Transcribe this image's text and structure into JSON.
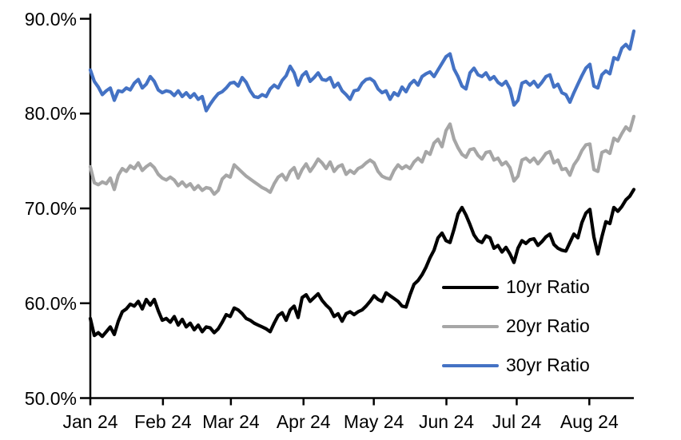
{
  "chart_data": {
    "type": "line",
    "title": "",
    "background": "#FFFFFF",
    "axis_color": "#000000",
    "grid": "off",
    "y_axis": {
      "min": 50,
      "max": 90,
      "tick_values": [
        90,
        80,
        70,
        60,
        50
      ],
      "tick_labels": [
        "90.0%",
        "80.0%",
        "70.0%",
        "60.0%",
        "50.0%"
      ],
      "format": "percent_one_decimal"
    },
    "x_axis": {
      "tick_labels": [
        "Jan 24",
        "Feb 24",
        "Mar 24",
        "Apr 24",
        "May 24",
        "Jun 24",
        "Jul 24",
        "Aug 24"
      ],
      "tick_day_offsets": [
        0,
        31,
        60,
        91,
        121,
        152,
        182,
        213
      ],
      "total_days": 232,
      "range_note": "daily data Jan 1 2024 through ~Aug 20 2024"
    },
    "legend": {
      "position": "inside-lower-right",
      "entries": [
        "10yr Ratio",
        "20yr Ratio",
        "30yr Ratio"
      ]
    },
    "series": [
      {
        "name": "10yr Ratio",
        "color": "#000000",
        "values": [
          58.4,
          56.6,
          56.9,
          56.5,
          57.0,
          57.5,
          56.7,
          58.1,
          59.1,
          59.4,
          59.9,
          59.7,
          60.2,
          59.4,
          60.4,
          59.8,
          60.4,
          59.2,
          58.2,
          58.4,
          58.0,
          58.6,
          57.7,
          58.3,
          57.5,
          57.9,
          57.2,
          57.7,
          57.0,
          57.5,
          57.4,
          56.9,
          57.3,
          58.0,
          58.8,
          58.6,
          59.5,
          59.3,
          58.9,
          58.4,
          58.2,
          57.9,
          57.7,
          57.5,
          57.3,
          57.0,
          57.9,
          58.7,
          59.0,
          58.2,
          59.3,
          59.7,
          58.5,
          60.6,
          60.9,
          60.2,
          60.6,
          61.0,
          60.3,
          59.8,
          59.4,
          58.6,
          58.9,
          58.1,
          58.9,
          59.1,
          58.8,
          59.1,
          59.3,
          59.7,
          60.2,
          60.8,
          60.4,
          60.2,
          61.1,
          60.8,
          60.5,
          60.2,
          59.7,
          59.6,
          60.9,
          62.0,
          62.4,
          63.0,
          63.8,
          64.8,
          65.6,
          66.9,
          67.4,
          66.6,
          66.4,
          67.8,
          69.4,
          70.1,
          69.3,
          68.3,
          67.2,
          66.6,
          66.4,
          67.1,
          66.9,
          65.8,
          66.1,
          65.4,
          65.9,
          65.2,
          64.3,
          65.8,
          66.6,
          66.3,
          66.7,
          66.8,
          66.1,
          66.5,
          67.0,
          67.3,
          66.2,
          65.8,
          65.6,
          65.5,
          66.4,
          67.3,
          66.9,
          68.5,
          69.5,
          69.9,
          67.0,
          65.2,
          67.0,
          68.6,
          68.4,
          70.1,
          69.7,
          70.2,
          70.9,
          71.3,
          72.0
        ]
      },
      {
        "name": "20yr Ratio",
        "color": "#A6A6A6",
        "values": [
          74.4,
          72.7,
          72.5,
          72.8,
          72.6,
          73.2,
          72.0,
          73.5,
          74.2,
          73.9,
          74.5,
          74.2,
          74.8,
          74.0,
          74.4,
          74.7,
          74.3,
          73.6,
          73.2,
          73.0,
          73.3,
          73.0,
          72.4,
          72.8,
          72.3,
          72.6,
          72.0,
          72.4,
          71.9,
          72.2,
          72.1,
          71.5,
          71.9,
          73.1,
          73.5,
          73.3,
          74.6,
          74.2,
          73.8,
          73.4,
          73.1,
          72.8,
          72.5,
          72.2,
          72.0,
          71.7,
          72.6,
          73.3,
          73.6,
          73.0,
          73.9,
          74.3,
          73.2,
          74.1,
          74.7,
          73.9,
          74.5,
          75.2,
          74.8,
          74.2,
          74.9,
          73.9,
          74.4,
          74.6,
          73.6,
          74.0,
          73.7,
          74.2,
          74.4,
          74.8,
          75.1,
          74.8,
          73.9,
          73.4,
          73.2,
          73.1,
          74.0,
          74.6,
          74.2,
          74.5,
          74.2,
          74.9,
          75.3,
          74.9,
          76.0,
          75.7,
          76.9,
          77.3,
          76.5,
          78.2,
          78.9,
          77.3,
          76.4,
          75.7,
          75.4,
          76.2,
          76.3,
          75.6,
          75.2,
          75.9,
          76.0,
          75.1,
          75.3,
          74.6,
          74.9,
          74.3,
          72.9,
          73.4,
          75.1,
          75.3,
          74.9,
          75.3,
          74.7,
          75.2,
          75.8,
          76.0,
          74.8,
          75.1,
          74.1,
          74.2,
          73.5,
          74.6,
          75.2,
          76.1,
          76.7,
          76.8,
          74.1,
          73.9,
          75.9,
          76.1,
          75.8,
          77.4,
          77.1,
          77.9,
          78.6,
          78.2,
          79.7
        ]
      },
      {
        "name": "30yr Ratio",
        "color": "#4472C4",
        "values": [
          84.6,
          83.4,
          82.8,
          82.0,
          82.4,
          82.7,
          81.4,
          82.4,
          82.3,
          82.7,
          82.5,
          83.2,
          83.6,
          82.7,
          83.1,
          83.9,
          83.4,
          82.5,
          82.2,
          82.4,
          82.3,
          81.9,
          82.4,
          81.8,
          82.2,
          81.7,
          82.1,
          81.5,
          81.8,
          80.3,
          81.0,
          81.6,
          82.1,
          82.3,
          82.7,
          83.2,
          83.3,
          82.9,
          83.8,
          83.3,
          82.4,
          81.8,
          81.7,
          82.0,
          81.8,
          82.6,
          83.0,
          82.7,
          83.5,
          84.0,
          85.0,
          84.3,
          83.0,
          84.0,
          84.4,
          83.4,
          83.8,
          84.3,
          83.6,
          83.5,
          83.8,
          82.8,
          83.2,
          82.4,
          82.0,
          81.5,
          82.4,
          82.5,
          83.2,
          83.6,
          83.7,
          83.4,
          82.6,
          82.2,
          82.4,
          81.5,
          82.2,
          81.9,
          82.8,
          82.3,
          83.1,
          83.5,
          83.0,
          83.9,
          84.2,
          84.4,
          83.9,
          84.6,
          85.3,
          86.0,
          86.3,
          84.7,
          83.9,
          82.9,
          82.6,
          84.3,
          84.8,
          84.1,
          83.9,
          84.3,
          83.6,
          83.9,
          83.3,
          83.0,
          83.4,
          82.6,
          80.9,
          81.4,
          83.2,
          83.4,
          83.0,
          83.4,
          82.8,
          83.3,
          83.9,
          84.1,
          82.8,
          83.1,
          82.2,
          82.0,
          81.2,
          82.2,
          83.1,
          84.0,
          84.8,
          85.2,
          82.9,
          82.7,
          84.1,
          84.5,
          84.2,
          85.9,
          85.7,
          86.9,
          87.3,
          86.8,
          88.7
        ]
      }
    ]
  }
}
